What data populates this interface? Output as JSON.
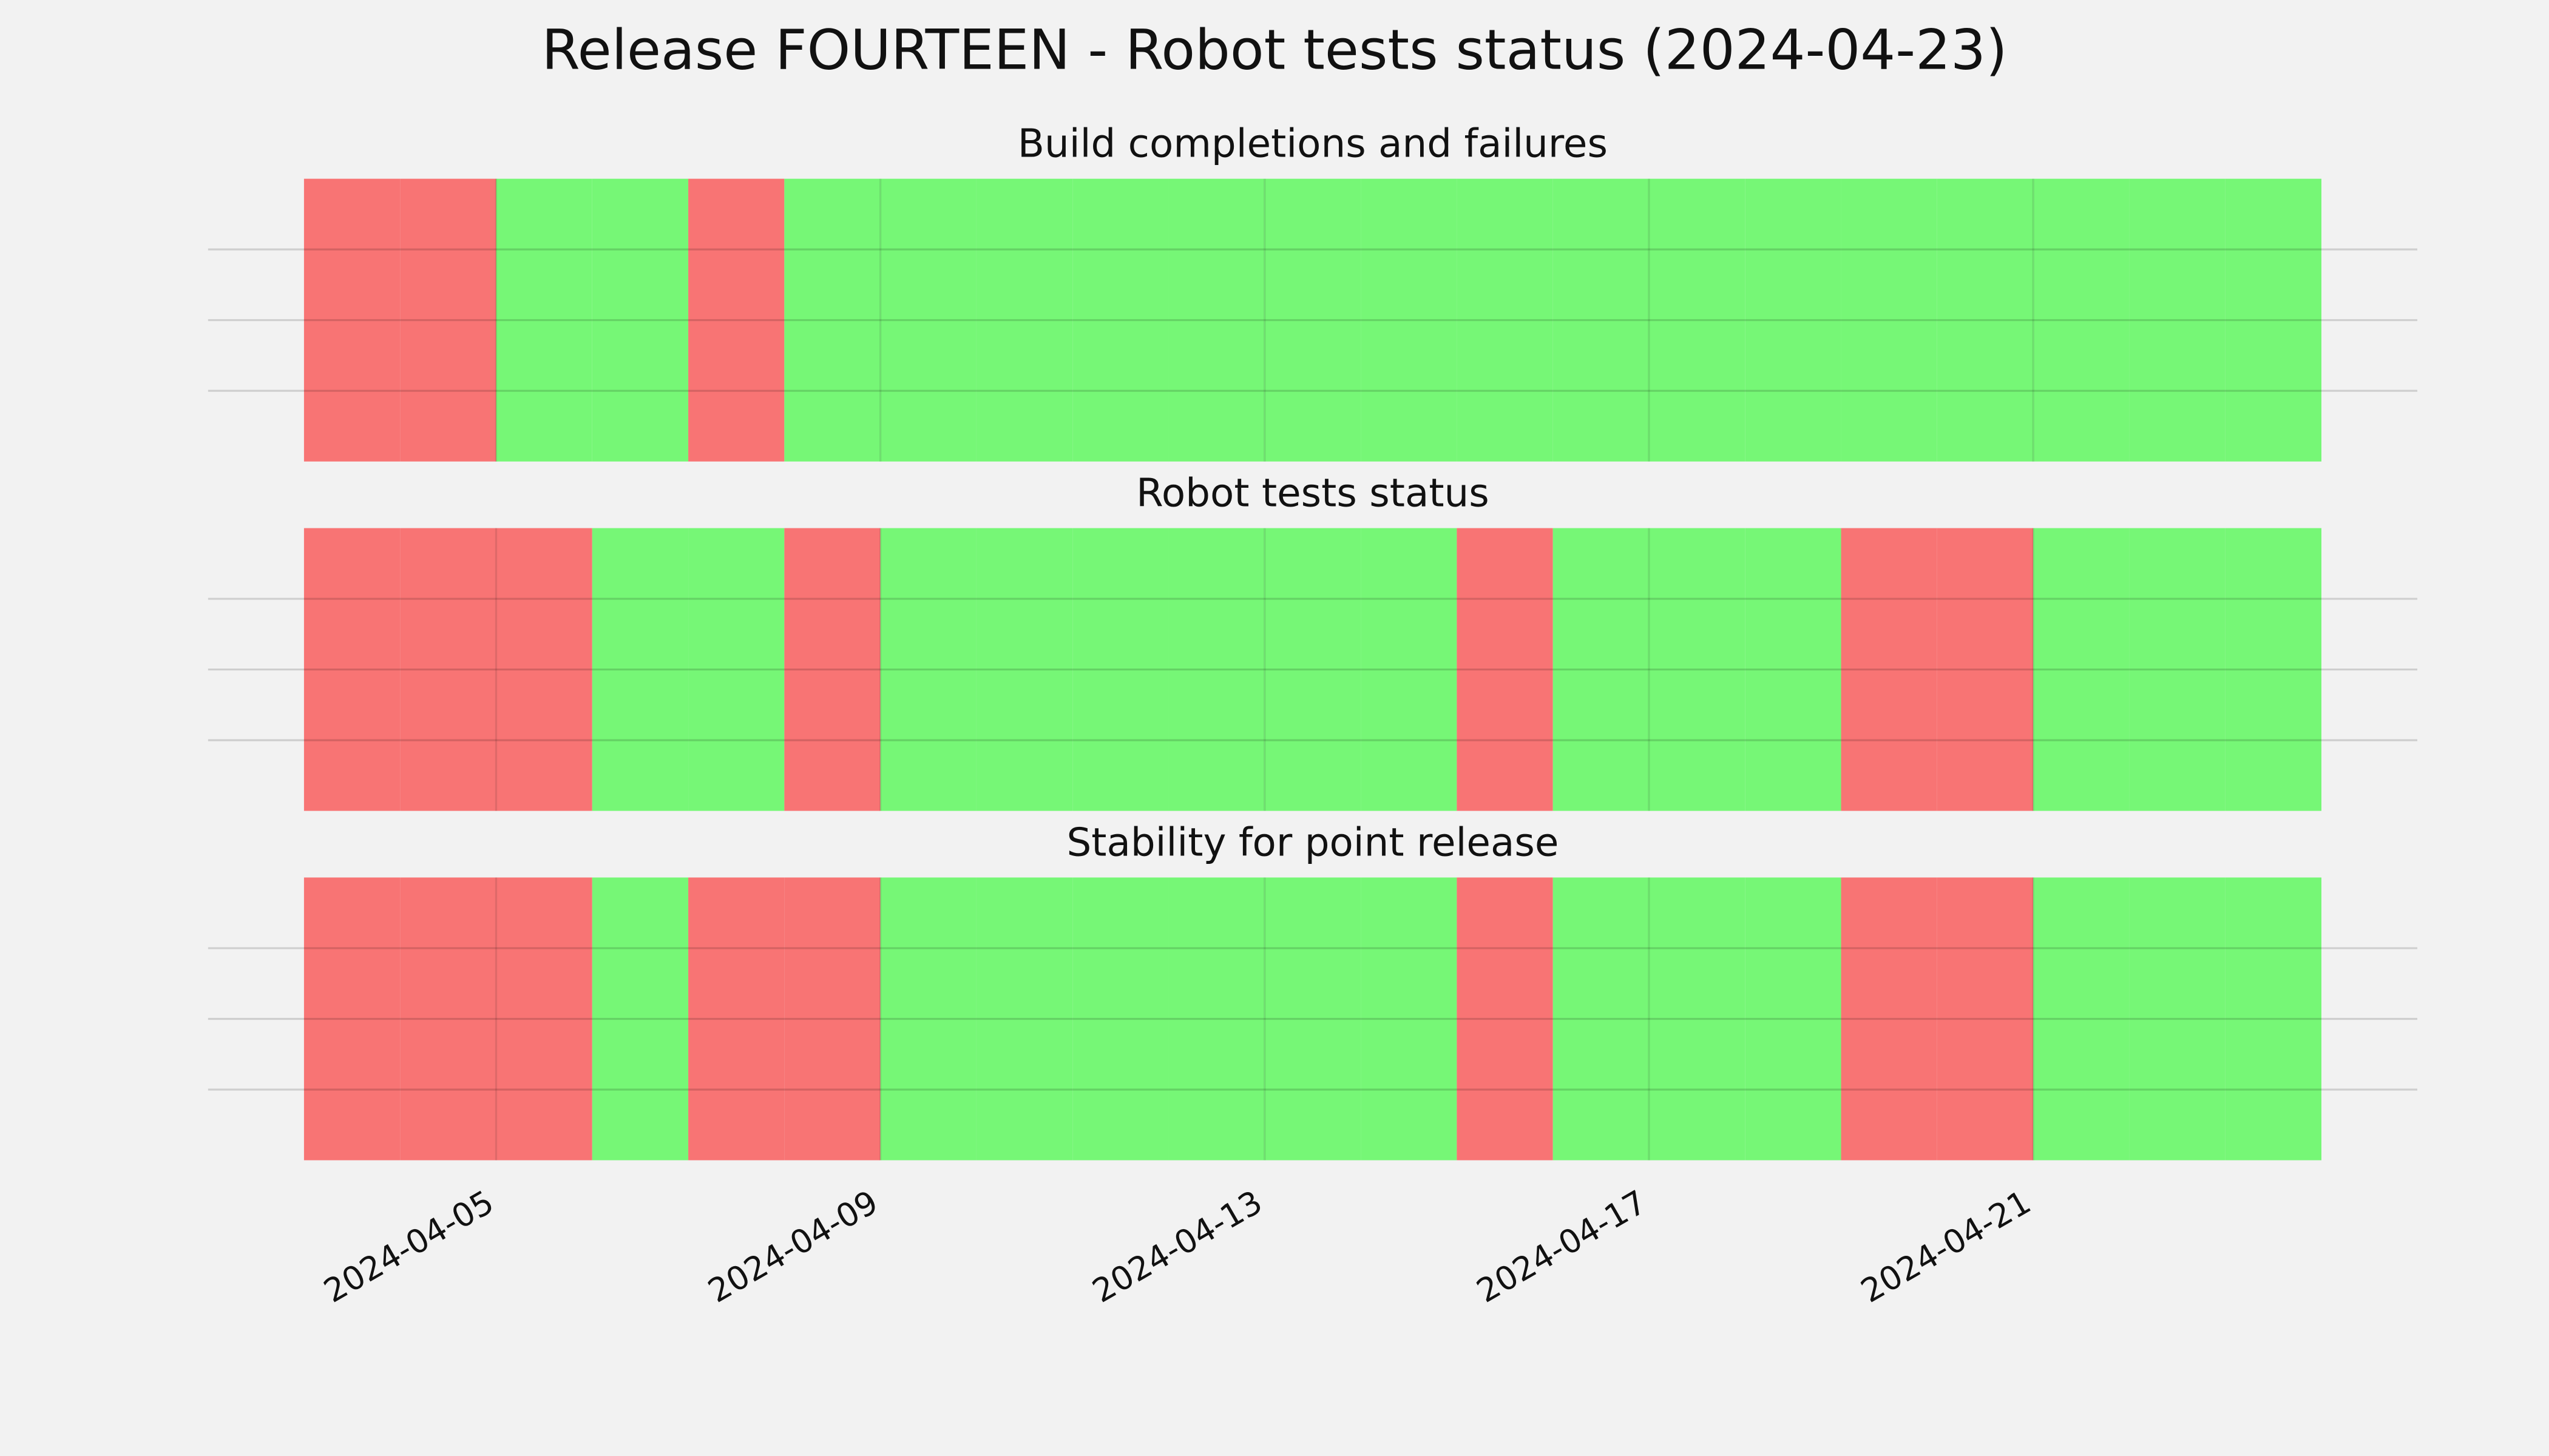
{
  "title": "Release FOURTEEN - Robot tests status (2024-04-23)",
  "chart_data": [
    {
      "type": "timeline",
      "title": "Build completions and failures",
      "x": [
        "2024-04-03",
        "2024-04-04",
        "2024-04-05",
        "2024-04-06",
        "2024-04-07",
        "2024-04-08",
        "2024-04-09",
        "2024-04-10",
        "2024-04-11",
        "2024-04-12",
        "2024-04-13",
        "2024-04-14",
        "2024-04-15",
        "2024-04-16",
        "2024-04-17",
        "2024-04-18",
        "2024-04-19",
        "2024-04-20",
        "2024-04-21",
        "2024-04-22",
        "2024-04-23"
      ],
      "values": [
        0,
        0,
        1,
        1,
        0,
        1,
        1,
        1,
        1,
        1,
        1,
        1,
        1,
        1,
        1,
        1,
        1,
        1,
        1,
        1,
        1
      ],
      "status_colors": [
        "#f87474",
        "#76f776"
      ],
      "xlim": [
        "2024-04-03",
        "2024-04-24"
      ],
      "xticks": [
        "2024-04-05",
        "2024-04-09",
        "2024-04-13",
        "2024-04-17",
        "2024-04-21"
      ],
      "ylim": [
        0,
        1
      ],
      "yticks": [
        0.25,
        0.5,
        0.75
      ],
      "grid": true
    },
    {
      "type": "timeline",
      "title": "Robot tests status",
      "x": [
        "2024-04-03",
        "2024-04-04",
        "2024-04-05",
        "2024-04-06",
        "2024-04-07",
        "2024-04-08",
        "2024-04-09",
        "2024-04-10",
        "2024-04-11",
        "2024-04-12",
        "2024-04-13",
        "2024-04-14",
        "2024-04-15",
        "2024-04-16",
        "2024-04-17",
        "2024-04-18",
        "2024-04-19",
        "2024-04-20",
        "2024-04-21",
        "2024-04-22",
        "2024-04-23"
      ],
      "values": [
        0,
        0,
        0,
        1,
        1,
        0,
        1,
        1,
        1,
        1,
        1,
        1,
        0,
        1,
        1,
        1,
        0,
        0,
        1,
        1,
        1
      ],
      "status_colors": [
        "#f87474",
        "#76f776"
      ],
      "xlim": [
        "2024-04-03",
        "2024-04-24"
      ],
      "xticks": [
        "2024-04-05",
        "2024-04-09",
        "2024-04-13",
        "2024-04-17",
        "2024-04-21"
      ],
      "ylim": [
        0,
        1
      ],
      "yticks": [
        0.25,
        0.5,
        0.75
      ],
      "grid": true
    },
    {
      "type": "timeline",
      "title": "Stability for point release",
      "x": [
        "2024-04-03",
        "2024-04-04",
        "2024-04-05",
        "2024-04-06",
        "2024-04-07",
        "2024-04-08",
        "2024-04-09",
        "2024-04-10",
        "2024-04-11",
        "2024-04-12",
        "2024-04-13",
        "2024-04-14",
        "2024-04-15",
        "2024-04-16",
        "2024-04-17",
        "2024-04-18",
        "2024-04-19",
        "2024-04-20",
        "2024-04-21",
        "2024-04-22",
        "2024-04-23"
      ],
      "values": [
        0,
        0,
        0,
        1,
        0,
        0,
        1,
        1,
        1,
        1,
        1,
        1,
        0,
        1,
        1,
        1,
        0,
        0,
        1,
        1,
        1
      ],
      "status_colors": [
        "#f87474",
        "#76f776"
      ],
      "xlim": [
        "2024-04-03",
        "2024-04-24"
      ],
      "xticks": [
        "2024-04-05",
        "2024-04-09",
        "2024-04-13",
        "2024-04-17",
        "2024-04-21"
      ],
      "ylim": [
        0,
        1
      ],
      "yticks": [
        0.25,
        0.5,
        0.75
      ],
      "grid": true
    }
  ]
}
